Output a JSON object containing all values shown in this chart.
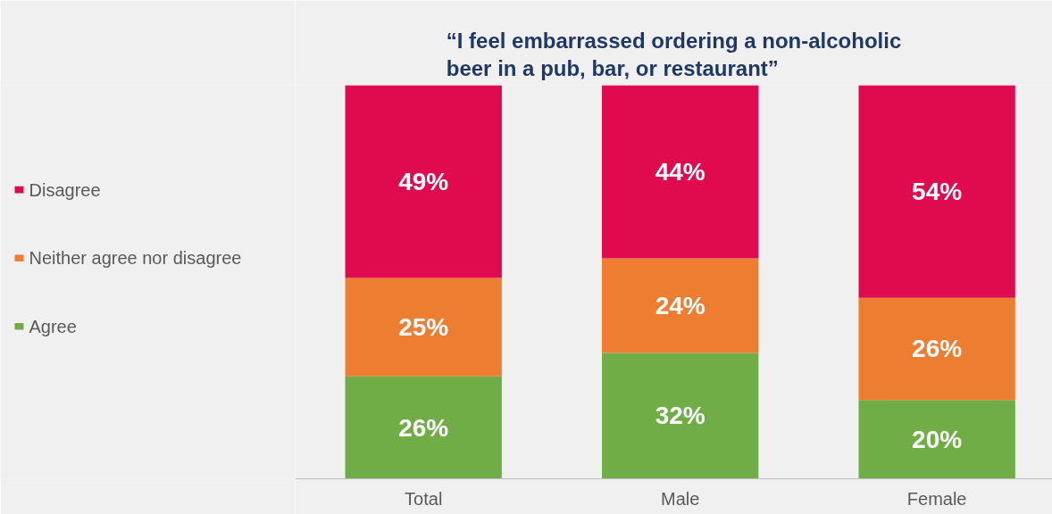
{
  "chart_data": {
    "type": "bar",
    "title": "“I feel embarrassed ordering a non-alcoholic beer in a pub, bar, or restaurant”",
    "categories": [
      "Total",
      "Male",
      "Female"
    ],
    "stacked": true,
    "legend": "left",
    "grid": false,
    "series": [
      {
        "name": "Agree",
        "color": "#70ad47",
        "values": [
          26,
          32,
          20
        ],
        "value_labels": [
          "26%",
          "32%",
          "20%"
        ]
      },
      {
        "name": "Neither agree nor disagree",
        "color": "#ed7d31",
        "values": [
          25,
          24,
          26
        ],
        "value_labels": [
          "25%",
          "24%",
          "26%"
        ]
      },
      {
        "name": "Disagree",
        "color": "#e00b4f",
        "values": [
          49,
          44,
          54
        ],
        "value_labels": [
          "49%",
          "44%",
          "54%"
        ]
      }
    ]
  }
}
